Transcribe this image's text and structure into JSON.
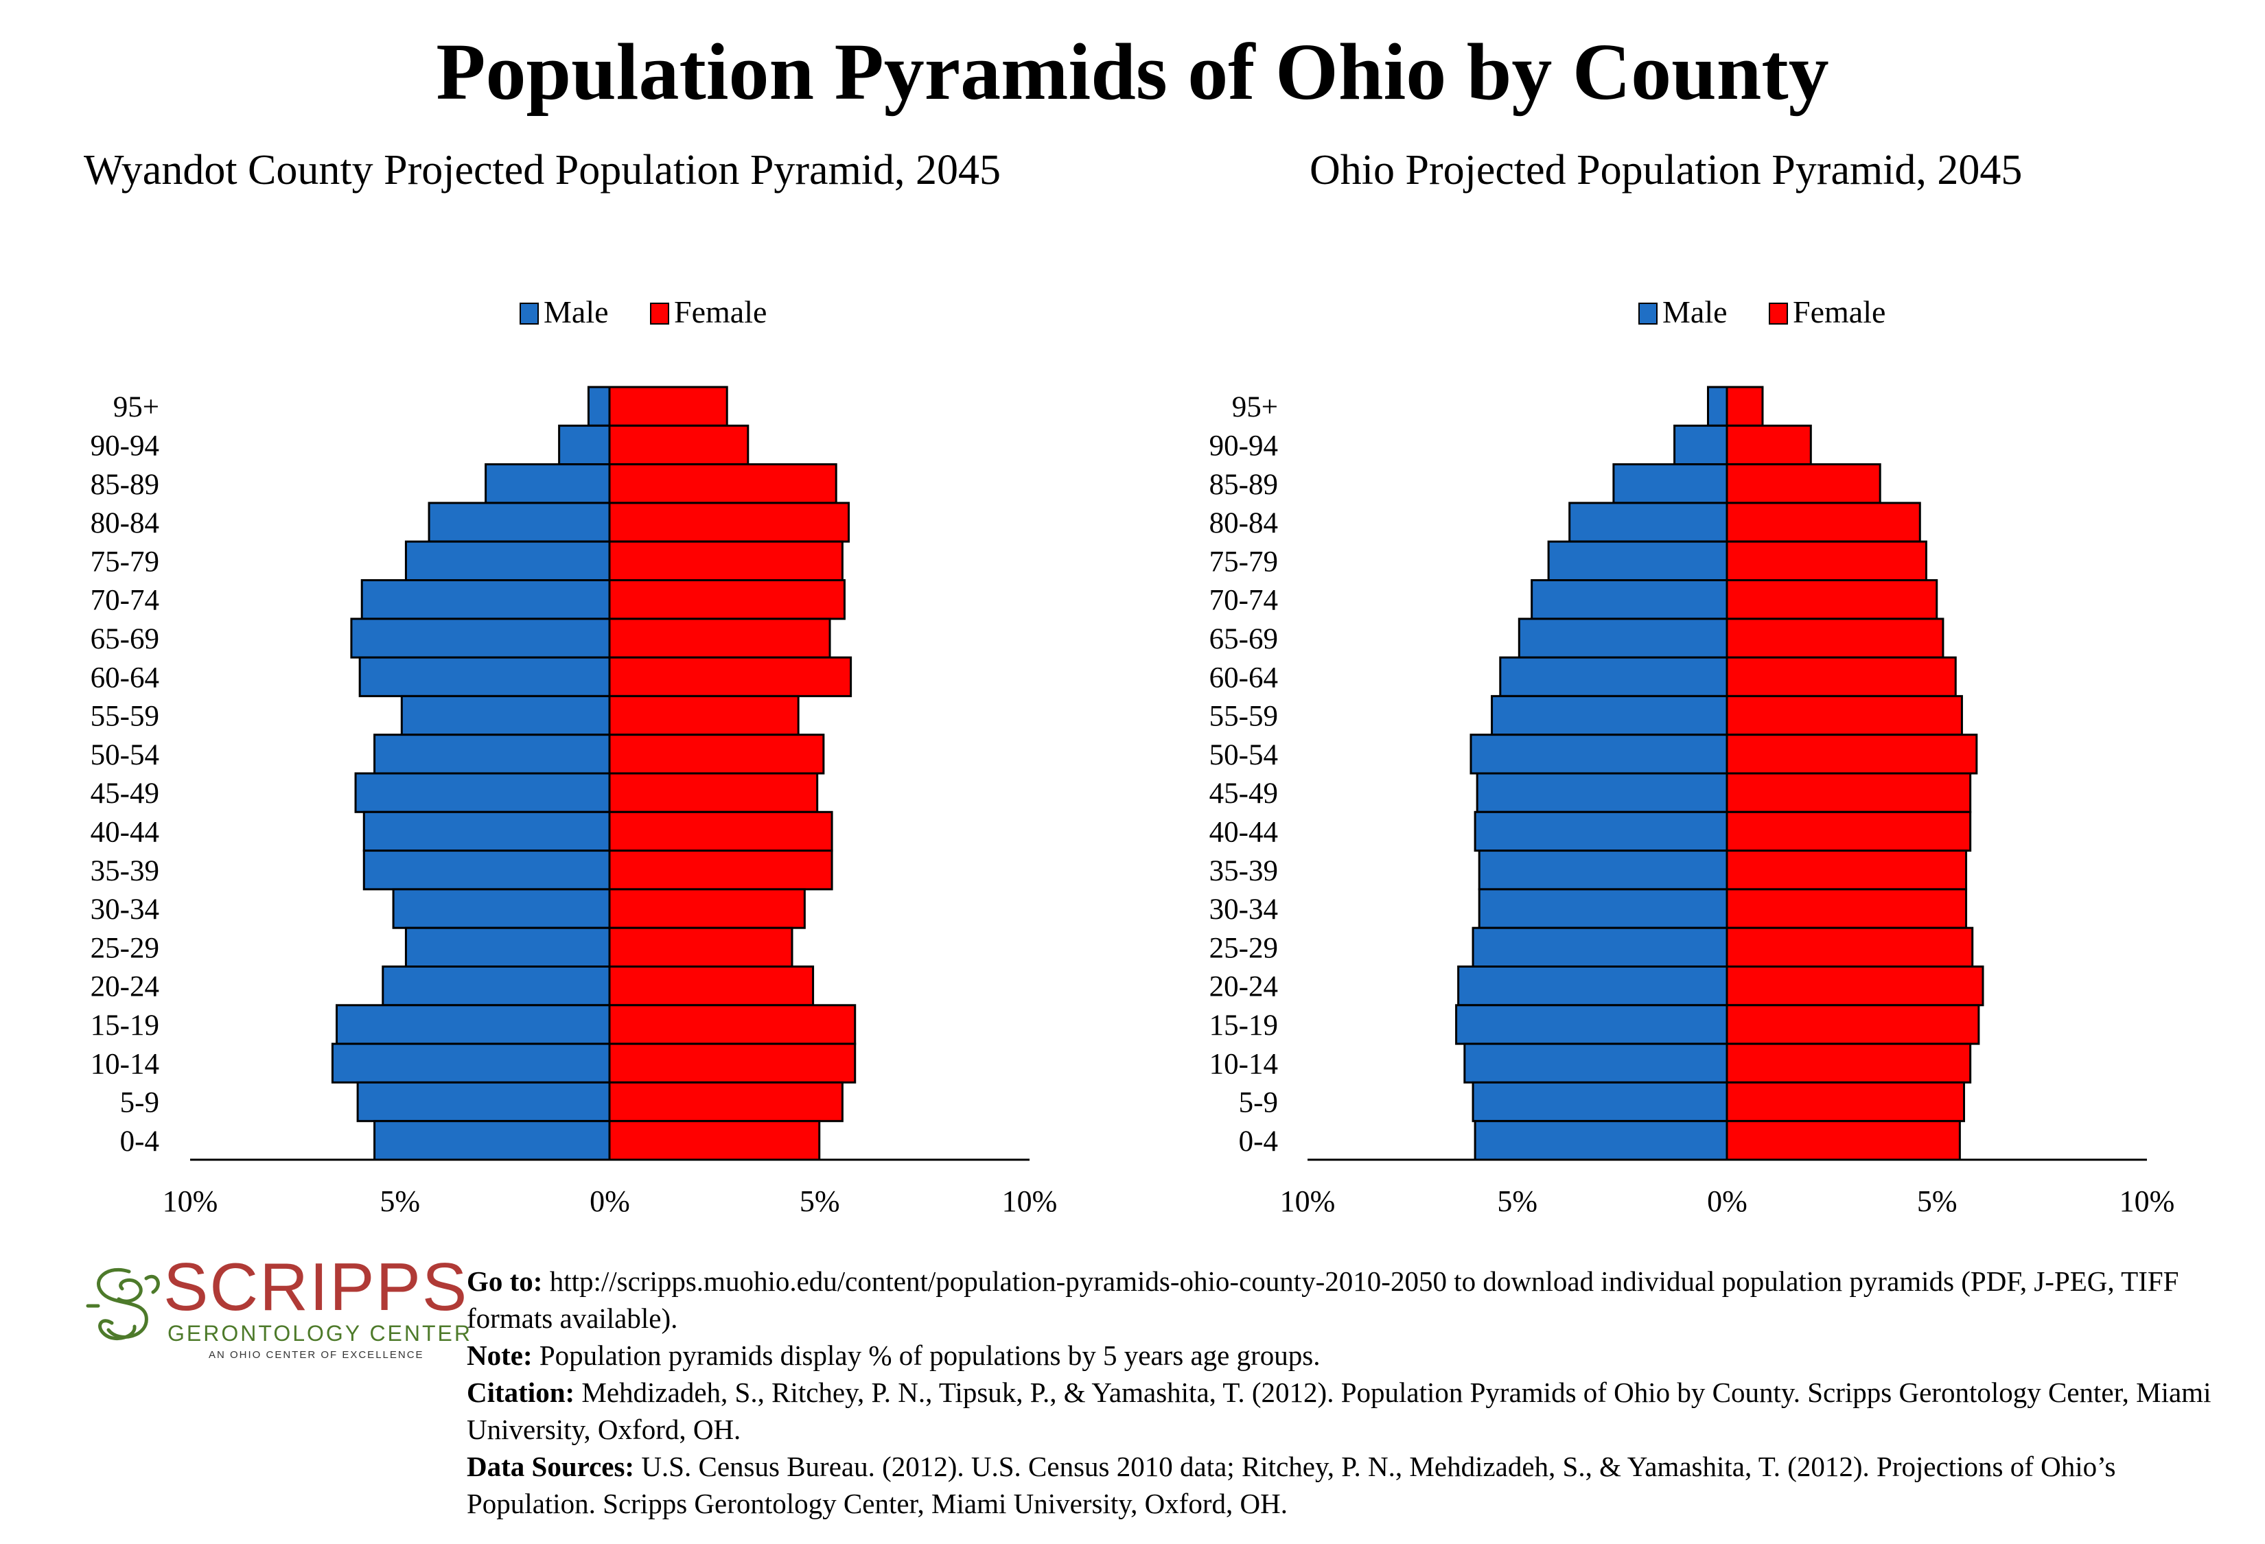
{
  "title": "Population Pyramids of Ohio by County",
  "colors": {
    "male": "#1f6fc5",
    "female": "#ff0000"
  },
  "chart_data": [
    {
      "type": "bar",
      "title": "Wyandot County Projected Population Pyramid, 2045",
      "legend": [
        "Male",
        "Female"
      ],
      "legend_position": "top-center",
      "categories": [
        "95+",
        "90-94",
        "85-89",
        "80-84",
        "75-79",
        "70-74",
        "65-69",
        "60-64",
        "55-59",
        "50-54",
        "45-49",
        "40-44",
        "35-39",
        "30-34",
        "25-29",
        "20-24",
        "15-19",
        "10-14",
        "5-9",
        "0-4"
      ],
      "series": [
        {
          "name": "Male",
          "values": [
            0.5,
            1.2,
            2.95,
            4.3,
            4.85,
            5.9,
            6.15,
            5.95,
            4.95,
            5.6,
            6.05,
            5.85,
            5.85,
            5.15,
            4.85,
            5.4,
            6.5,
            6.6,
            6.0,
            5.6
          ]
        },
        {
          "name": "Female",
          "values": [
            2.8,
            3.3,
            5.4,
            5.7,
            5.55,
            5.6,
            5.25,
            5.75,
            4.5,
            5.1,
            4.95,
            5.3,
            5.3,
            4.65,
            4.35,
            4.85,
            5.85,
            5.85,
            5.55,
            5.0
          ]
        }
      ],
      "xlim": [
        -10,
        10
      ],
      "xticks": [
        "10%",
        "5%",
        "0%",
        "5%",
        "10%"
      ],
      "grid": false
    },
    {
      "type": "bar",
      "title": "Ohio Projected Population Pyramid, 2045",
      "legend": [
        "Male",
        "Female"
      ],
      "legend_position": "top-center",
      "categories": [
        "95+",
        "90-94",
        "85-89",
        "80-84",
        "75-79",
        "70-74",
        "65-69",
        "60-64",
        "55-59",
        "50-54",
        "45-49",
        "40-44",
        "35-39",
        "30-34",
        "25-29",
        "20-24",
        "15-19",
        "10-14",
        "5-9",
        "0-4"
      ],
      "series": [
        {
          "name": "Male",
          "values": [
            0.45,
            1.25,
            2.7,
            3.75,
            4.25,
            4.65,
            4.95,
            5.4,
            5.6,
            6.1,
            5.95,
            6.0,
            5.9,
            5.9,
            6.05,
            6.4,
            6.45,
            6.25,
            6.05,
            6.0
          ]
        },
        {
          "name": "Female",
          "values": [
            0.85,
            2.0,
            3.65,
            4.6,
            4.75,
            5.0,
            5.15,
            5.45,
            5.6,
            5.95,
            5.8,
            5.8,
            5.7,
            5.7,
            5.85,
            6.1,
            6.0,
            5.8,
            5.65,
            5.55
          ]
        }
      ],
      "xlim": [
        -10,
        10
      ],
      "xticks": [
        "10%",
        "5%",
        "0%",
        "5%",
        "10%"
      ],
      "grid": false
    }
  ],
  "logo": {
    "name": "SCRIPPS",
    "subtitle": "GERONTOLOGY CENTER",
    "tagline": "AN OHIO CENTER OF EXCELLENCE"
  },
  "notes": [
    {
      "label": "Go to:",
      "text": "http://scripps.muohio.edu/content/population-pyramids-ohio-county-2010-2050 to download individual population pyramids (PDF, J-PEG, TIFF formats available)."
    },
    {
      "label": "Note:",
      "text": "Population pyramids display % of populations by 5 years age groups."
    },
    {
      "label": "Citation:",
      "text": "Mehdizadeh, S., Ritchey, P. N., Tipsuk, P., & Yamashita, T. (2012). Population Pyramids of Ohio by County. Scripps Gerontology Center, Miami University, Oxford, OH."
    },
    {
      "label": "Data Sources:",
      "text": "U.S. Census Bureau. (2012). U.S. Census 2010 data; Ritchey, P. N., Mehdizadeh, S., & Yamashita, T. (2012). Projections of Ohio’s Population. Scripps Gerontology Center, Miami University, Oxford, OH."
    }
  ]
}
